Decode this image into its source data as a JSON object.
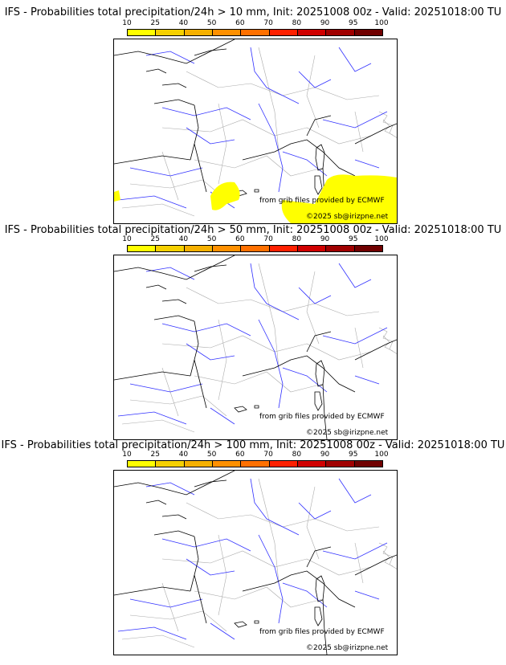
{
  "colorbar": {
    "ticks": [
      "10",
      "25",
      "40",
      "50",
      "60",
      "70",
      "80",
      "90",
      "95",
      "100"
    ],
    "colors": [
      "#ffff00",
      "#f5d000",
      "#f5b000",
      "#ff9000",
      "#ff7000",
      "#ff2000",
      "#d00000",
      "#a00000",
      "#700000"
    ]
  },
  "panels": [
    {
      "title": "IFS - Probabilities total precipitation/24h > 10 mm, Init: 20251008 00z - Valid: 20251018:00 TU",
      "credit": "from grib files provided by ECMWF",
      "copyright": "©2025 sb@irizpne.net",
      "has_precip": true
    },
    {
      "title": "IFS - Probabilities total precipitation/24h > 50 mm, Init: 20251008 00z - Valid: 20251018:00 TU",
      "credit": "from grib files provided by ECMWF",
      "copyright": "©2025 sb@irizpne.net",
      "has_precip": false
    },
    {
      "title": "IFS - Probabilities total precipitation/24h > 100 mm, Init: 20251008 00z - Valid: 20251018:00 TU",
      "credit": "from grib files provided by ECMWF",
      "copyright": "©2025 sb@irizpne.net",
      "has_precip": false
    }
  ],
  "precip_color": "#ffff00"
}
